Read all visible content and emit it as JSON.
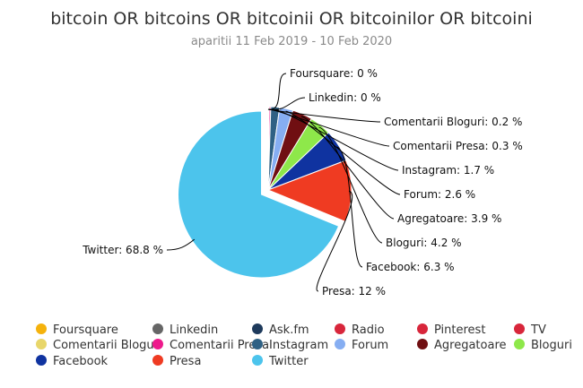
{
  "chart_data": {
    "type": "pie",
    "title": "bitcoin OR bitcoins OR bitcoinii OR bitcoinilor OR bitcoini",
    "subtitle": "aparitii 11 Feb 2019 - 10 Feb 2020",
    "value_suffix": " %",
    "slices": [
      {
        "name": "Foursquare",
        "value": 0,
        "color": "#f5b20c"
      },
      {
        "name": "Linkedin",
        "value": 0,
        "color": "#666666"
      },
      {
        "name": "Ask.fm",
        "value": 0,
        "color": "#1e3a5c"
      },
      {
        "name": "Radio",
        "value": 0,
        "color": "#d8263b"
      },
      {
        "name": "Pinterest",
        "value": 0,
        "color": "#d8263b"
      },
      {
        "name": "TV",
        "value": 0,
        "color": "#d8263b"
      },
      {
        "name": "Comentarii Bloguri",
        "value": 0.2,
        "color": "#e8d66a"
      },
      {
        "name": "Comentarii Presa",
        "value": 0.3,
        "color": "#ee1a8c"
      },
      {
        "name": "Instagram",
        "value": 1.7,
        "color": "#2f6184"
      },
      {
        "name": "Forum",
        "value": 2.6,
        "color": "#86aef2"
      },
      {
        "name": "Agregatoare",
        "value": 3.9,
        "color": "#700f12"
      },
      {
        "name": "Bloguri",
        "value": 4.2,
        "color": "#8ee84a"
      },
      {
        "name": "Facebook",
        "value": 6.3,
        "color": "#0f33a0"
      },
      {
        "name": "Presa",
        "value": 12,
        "color": "#ef3b22"
      },
      {
        "name": "Twitter",
        "value": 68.8,
        "color": "#4cc4ec"
      }
    ],
    "data_labels_shown": [
      "Foursquare",
      "Linkedin",
      "Comentarii Bloguri",
      "Comentarii Presa",
      "Instagram",
      "Forum",
      "Agregatoare",
      "Bloguri",
      "Facebook",
      "Presa",
      "Twitter"
    ],
    "legend_position": "bottom"
  }
}
